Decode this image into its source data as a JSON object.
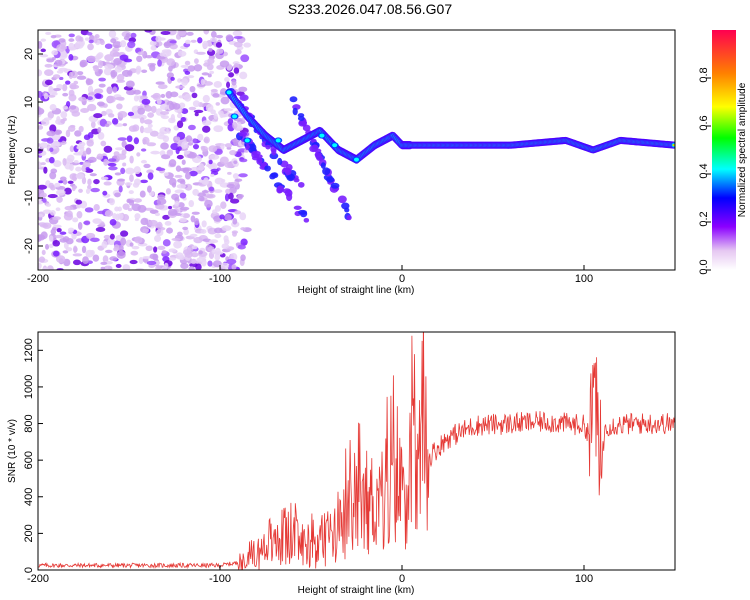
{
  "title": "S233.2026.047.08.56.G07",
  "chart_data": [
    {
      "type": "heatmap",
      "name": "spectrogram",
      "xlabel": "Height of straight line (km)",
      "ylabel": "Frequency (Hz)",
      "xlim": [
        -200,
        150
      ],
      "ylim": [
        -25,
        25
      ],
      "xticks": [
        -200,
        -100,
        0,
        100
      ],
      "yticks": [
        -20,
        -10,
        0,
        10,
        20
      ],
      "colorbar": {
        "label": "Normalized spectral amplitude",
        "range": [
          0,
          1
        ],
        "ticks": [
          "0.0",
          "0.2",
          "0.4",
          "0.6",
          "0.8"
        ]
      },
      "description_points": {
        "noise_region_x": [
          -200,
          -95
        ],
        "ridge": [
          [
            -95,
            12
          ],
          [
            -85,
            7
          ],
          [
            -75,
            3
          ],
          [
            -65,
            0
          ],
          [
            -55,
            2
          ],
          [
            -45,
            4
          ],
          [
            -35,
            0
          ],
          [
            -25,
            -2
          ],
          [
            -15,
            1
          ],
          [
            -5,
            3
          ],
          [
            0,
            1
          ],
          [
            20,
            1
          ],
          [
            60,
            1
          ],
          [
            90,
            2
          ],
          [
            105,
            0
          ],
          [
            120,
            2
          ],
          [
            150,
            1
          ]
        ]
      }
    },
    {
      "type": "line",
      "name": "snr",
      "xlabel": "Height of straight line (km)",
      "ylabel": "SNR (10 * v/v)",
      "xlim": [
        -200,
        150
      ],
      "ylim": [
        0,
        1300
      ],
      "xticks": [
        -200,
        -100,
        0,
        100
      ],
      "yticks": [
        0,
        200,
        400,
        600,
        800,
        1000,
        1200
      ],
      "color": "#e53935",
      "envelope": [
        [
          -200,
          25
        ],
        [
          -100,
          25
        ],
        [
          -90,
          40
        ],
        [
          -75,
          110
        ],
        [
          -65,
          180
        ],
        [
          -55,
          140
        ],
        [
          -45,
          150
        ],
        [
          -35,
          220
        ],
        [
          -25,
          320
        ],
        [
          -15,
          380
        ],
        [
          -5,
          420
        ],
        [
          5,
          520
        ],
        [
          15,
          620
        ],
        [
          25,
          720
        ],
        [
          40,
          790
        ],
        [
          60,
          800
        ],
        [
          80,
          810
        ],
        [
          100,
          790
        ],
        [
          104,
          730
        ],
        [
          106,
          1150
        ],
        [
          108,
          500
        ],
        [
          112,
          790
        ],
        [
          130,
          800
        ],
        [
          150,
          800
        ]
      ]
    }
  ]
}
